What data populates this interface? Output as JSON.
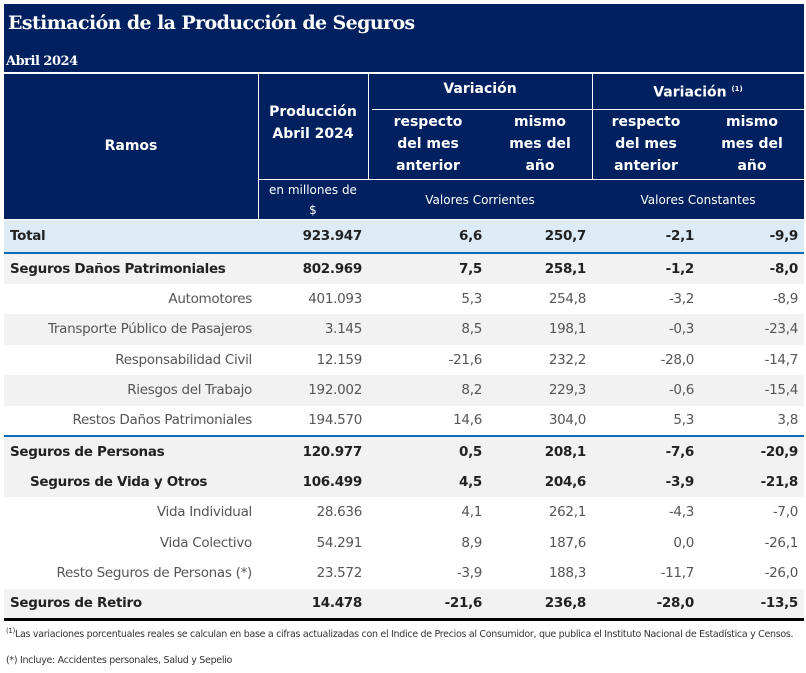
{
  "title": "Estimación de la Producción de Seguros",
  "subtitle": "Abril 2024",
  "header": {
    "ramos": "Ramos",
    "produccion_l1": "Producción",
    "produccion_l2": "Abril 2024",
    "unit_l1": "en millones de",
    "unit_l2": "$",
    "variacion": "Variación",
    "variacion_real": "Variación",
    "variacion_real_sup": "(1)",
    "resp_l1": "respecto",
    "resp_l2": "del mes",
    "resp_l3": "anterior",
    "mismo_l1": "mismo",
    "mismo_l2": "mes del",
    "mismo_l3": "año",
    "corrientes": "Valores Corrientes",
    "constantes": "Valores Constantes"
  },
  "rows": [
    [
      "Total",
      "923.947",
      "6,6",
      "250,7",
      "-2,1",
      "-9,9"
    ],
    [
      "Seguros Daños Patrimoniales",
      "802.969",
      "7,5",
      "258,1",
      "-1,2",
      "-8,0"
    ],
    [
      "Automotores",
      "401.093",
      "5,3",
      "254,8",
      "-3,2",
      "-8,9"
    ],
    [
      "Transporte Público de Pasajeros",
      "3.145",
      "8,5",
      "198,1",
      "-0,3",
      "-23,4"
    ],
    [
      "Responsabilidad Civil",
      "12.159",
      "-21,6",
      "232,2",
      "-28,0",
      "-14,7"
    ],
    [
      "Riesgos del Trabajo",
      "192.002",
      "8,2",
      "229,3",
      "-0,6",
      "-15,4"
    ],
    [
      "Restos Daños Patrimoniales",
      "194.570",
      "14,6",
      "304,0",
      "5,3",
      "3,8"
    ],
    [
      "Seguros de Personas",
      "120.977",
      "0,5",
      "208,1",
      "-7,6",
      "-20,9"
    ],
    [
      "Seguros de Vida y Otros",
      "106.499",
      "4,5",
      "204,6",
      "-3,9",
      "-21,8"
    ],
    [
      "Vida Individual",
      "28.636",
      "4,1",
      "262,1",
      "-4,3",
      "-7,0"
    ],
    [
      "Vida Colectivo",
      "54.291",
      "8,9",
      "187,6",
      "0,0",
      "-26,1"
    ],
    [
      "Resto Seguros de Personas (*)",
      "23.572",
      "-3,9",
      "188,3",
      "-11,7",
      "-26,0"
    ],
    [
      "Seguros de Retiro",
      "14.478",
      "-21,6",
      "236,8",
      "-28,0",
      "-13,5"
    ]
  ],
  "footnotes": {
    "note1_sup": "(1)",
    "note1": "Las variaciones porcentuales reales se calculan en base a cifras actualizadas con  el Indice de Precios al Consumidor, que publica el Instituto Nacional de Estadística y  Censos.",
    "note2": "(*) Incluye: Accidentes personales, Salud y Sepelio"
  }
}
